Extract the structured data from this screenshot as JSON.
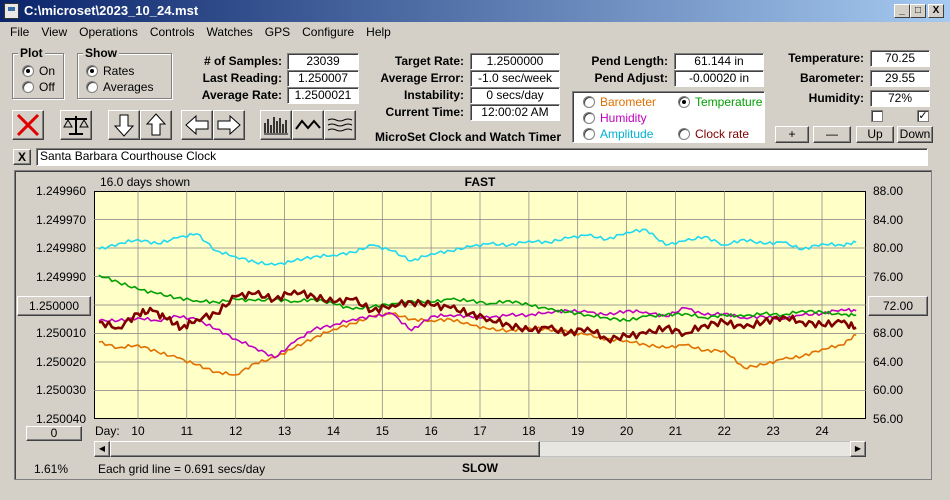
{
  "window": {
    "title": "C:\\microset\\2023_10_24.mst",
    "min": "_",
    "max": "□",
    "close": "X"
  },
  "menu": [
    "File",
    "View",
    "Operations",
    "Controls",
    "Watches",
    "GPS",
    "Configure",
    "Help"
  ],
  "plot_group": {
    "title": "Plot",
    "on": "On",
    "off": "Off",
    "selected": "On"
  },
  "show_group": {
    "title": "Show",
    "rates": "Rates",
    "averages": "Averages",
    "selected": "Rates"
  },
  "stats": {
    "samples_label": "# of Samples:",
    "samples": "23039",
    "last_label": "Last Reading:",
    "last": "1.250007",
    "avgrate_label": "Average Rate:",
    "avgrate": "1.2500021",
    "target_label": "Target Rate:",
    "target": "1.2500000",
    "avgerr_label": "Average Error:",
    "avgerr": "-1.0 sec/week",
    "instab_label": "Instability:",
    "instab": "0 secs/day",
    "time_label": "Current Time:",
    "time": "12:00:02 AM",
    "pendlen_label": "Pend Length:",
    "pendlen": "61.144 in",
    "pendadj_label": "Pend Adjust:",
    "pendadj": "-0.00020 in",
    "temp_label": "Temperature:",
    "temp": "70.25",
    "baro_label": "Barometer:",
    "baro": "29.55",
    "hum_label": "Humidity:",
    "hum": "72%"
  },
  "app_name": "MicroSet Clock and Watch Timer",
  "sensor_select": {
    "barometer": "Barometer",
    "temperature": "Temperature",
    "humidity": "Humidity",
    "amplitude": "Amplitude",
    "clockrate": "Clock rate",
    "selected": "Temperature",
    "colors": {
      "barometer": "#e07000",
      "temperature": "#00a000",
      "humidity": "#c000c0",
      "amplitude": "#00b0d0",
      "clockrate": "#800000"
    }
  },
  "scale_buttons": {
    "plus": "+",
    "minus": "—",
    "up": "Up",
    "down": "Down"
  },
  "toolbar_icons": [
    "stop-icon",
    "balance-icon",
    "arrow-down-icon",
    "arrow-up-icon",
    "arrow-left-icon",
    "arrow-right-icon",
    "bars-icon",
    "wave-icon",
    "lines-icon"
  ],
  "watch_name": "Santa Barbara Courthouse Clock",
  "clear_x": "X",
  "chart": {
    "days_shown": "16.0 days shown",
    "top_label": "FAST",
    "bottom_label": "SLOW",
    "left_ticks": [
      "1.249960",
      "1.249970",
      "1.249980",
      "1.249990",
      "1.250000",
      "1.250010",
      "1.250020",
      "1.250030",
      "1.250040"
    ],
    "right_ticks": [
      "88.00",
      "84.00",
      "80.00",
      "76.00",
      "72.00",
      "68.00",
      "64.00",
      "60.00",
      "56.00"
    ],
    "center_left_btn": "1.250000",
    "center_right_btn": "72.00",
    "zero_btn": "0",
    "day_label": "Day:",
    "days": [
      "10",
      "11",
      "12",
      "13",
      "14",
      "15",
      "16",
      "17",
      "18",
      "19",
      "20",
      "21",
      "22",
      "23",
      "24"
    ],
    "percent": "1.61%",
    "grid_note": "Each grid line = 0.691 secs/day"
  },
  "chart_data": {
    "type": "line",
    "x_range": [
      9.1,
      24.9
    ],
    "y_left_range": [
      1.24996,
      1.25004
    ],
    "y_right_range": [
      56,
      88
    ],
    "series": [
      {
        "name": "Clock rate",
        "color": "#800000",
        "axis": "left",
        "x": [
          9.2,
          9.6,
          10.0,
          10.3,
          10.6,
          10.9,
          11.2,
          11.6,
          12.0,
          12.4,
          12.8,
          13.2,
          13.6,
          14.0,
          14.4,
          14.8,
          15.2,
          15.6,
          16.0,
          16.4,
          16.8,
          17.2,
          17.6,
          18.0,
          18.4,
          18.8,
          19.2,
          19.6,
          20.0,
          20.4,
          20.8,
          21.2,
          21.6,
          22.0,
          22.4,
          22.8,
          23.2,
          23.6,
          24.0,
          24.4,
          24.7
        ],
        "y": [
          1.250006,
          1.250008,
          1.250003,
          1.250002,
          1.250005,
          1.250008,
          1.250005,
          1.250003,
          1.249997,
          1.249996,
          1.249998,
          1.249995,
          1.249997,
          1.249999,
          1.249998,
          1.250002,
          1.25,
          1.249999,
          1.25,
          1.250001,
          1.250003,
          1.250005,
          1.250007,
          1.250009,
          1.250008,
          1.25001,
          1.250008,
          1.250012,
          1.250011,
          1.25001,
          1.250008,
          1.25001,
          1.250007,
          1.250006,
          1.250008,
          1.250006,
          1.250004,
          1.250006,
          1.250007,
          1.250006,
          1.250008
        ]
      },
      {
        "name": "Temperature",
        "color": "#00a000",
        "axis": "right",
        "x": [
          9.2,
          9.6,
          10.0,
          10.4,
          10.8,
          11.2,
          11.6,
          12.0,
          12.4,
          12.8,
          13.2,
          13.6,
          14.0,
          14.4,
          14.8,
          15.2,
          15.6,
          16.0,
          16.4,
          16.8,
          17.2,
          17.6,
          18.0,
          18.4,
          18.8,
          19.2,
          19.6,
          20.0,
          20.4,
          20.8,
          21.2,
          21.6,
          22.0,
          22.4,
          22.8,
          23.2,
          23.6,
          24.0,
          24.4,
          24.7
        ],
        "y": [
          76.2,
          75.2,
          74.2,
          73.6,
          73.0,
          72.6,
          72.4,
          72.8,
          72.6,
          72.8,
          72.5,
          72.8,
          72.2,
          71.4,
          71.8,
          72.2,
          72.6,
          72.4,
          72.8,
          72.6,
          72.2,
          72.6,
          72.0,
          71.4,
          71.0,
          70.6,
          70.2,
          69.8,
          70.4,
          70.6,
          70.8,
          70.2,
          70.6,
          70.4,
          70.8,
          70.6,
          71.2,
          71.0,
          70.6,
          70.6
        ]
      },
      {
        "name": "Humidity",
        "color": "#c000c0",
        "axis": "right",
        "x": [
          9.2,
          9.6,
          10.0,
          10.4,
          10.8,
          11.2,
          11.6,
          12.0,
          12.4,
          12.8,
          13.2,
          13.6,
          14.0,
          14.4,
          14.8,
          15.2,
          15.6,
          16.0,
          16.4,
          16.8,
          17.2,
          17.6,
          18.0,
          18.4,
          18.8,
          19.2,
          19.6,
          20.0,
          20.4,
          20.8,
          21.2,
          21.6,
          22.0,
          22.4,
          22.8,
          23.2,
          23.6,
          24.0,
          24.4,
          24.7
        ],
        "y": [
          69.8,
          69.8,
          70.2,
          69.8,
          70.4,
          70.0,
          68.6,
          67.2,
          66.0,
          64.6,
          66.8,
          68.6,
          69.2,
          70.0,
          70.4,
          70.8,
          68.4,
          70.4,
          70.6,
          70.4,
          70.2,
          70.6,
          70.6,
          71.0,
          71.2,
          71.0,
          70.6,
          71.2,
          71.0,
          70.4,
          71.6,
          70.6,
          70.8,
          70.2,
          70.4,
          70.0,
          70.6,
          70.8,
          71.4,
          71.2
        ]
      },
      {
        "name": "Barometer",
        "color": "#e07000",
        "axis": "right",
        "x": [
          9.2,
          9.6,
          10.0,
          10.4,
          10.8,
          11.2,
          11.6,
          12.0,
          12.4,
          12.8,
          13.2,
          13.6,
          14.0,
          14.4,
          14.8,
          15.2,
          15.6,
          16.0,
          16.4,
          16.8,
          17.2,
          17.6,
          18.0,
          18.4,
          18.8,
          19.2,
          19.6,
          20.0,
          20.4,
          20.8,
          21.2,
          21.6,
          22.0,
          22.4,
          22.8,
          23.2,
          23.6,
          24.0,
          24.4,
          24.7
        ],
        "y": [
          66.8,
          66.0,
          66.4,
          65.4,
          64.6,
          63.6,
          62.6,
          62.2,
          63.8,
          64.6,
          66.0,
          67.4,
          68.6,
          69.4,
          70.4,
          70.8,
          70.0,
          69.8,
          70.0,
          69.2,
          68.6,
          68.4,
          68.8,
          68.6,
          68.2,
          67.8,
          67.2,
          67.0,
          66.4,
          66.0,
          66.4,
          65.6,
          65.6,
          63.2,
          63.6,
          64.4,
          64.8,
          65.8,
          66.4,
          67.8
        ]
      },
      {
        "name": "Amplitude",
        "color": "#20d8f0",
        "axis": "right",
        "x": [
          9.2,
          9.6,
          10.0,
          10.4,
          10.8,
          11.2,
          11.6,
          12.0,
          12.4,
          12.8,
          13.2,
          13.6,
          14.0,
          14.4,
          14.8,
          15.2,
          15.6,
          16.0,
          16.4,
          16.8,
          17.2,
          17.6,
          18.0,
          18.4,
          18.8,
          19.2,
          19.6,
          20.0,
          20.4,
          20.8,
          21.2,
          21.6,
          22.0,
          22.4,
          22.8,
          23.2,
          23.6,
          24.0,
          24.4,
          24.7
        ],
        "y": [
          79.8,
          80.6,
          81.2,
          80.6,
          81.4,
          82.0,
          79.6,
          78.8,
          78.0,
          77.6,
          78.2,
          78.8,
          79.0,
          79.4,
          80.4,
          79.6,
          78.2,
          79.2,
          79.6,
          80.2,
          80.6,
          80.4,
          81.0,
          80.8,
          81.4,
          81.8,
          81.2,
          82.2,
          82.6,
          80.4,
          81.0,
          81.6,
          80.4,
          81.2,
          80.6,
          80.8,
          79.8,
          80.6,
          80.4,
          80.8
        ]
      }
    ]
  }
}
